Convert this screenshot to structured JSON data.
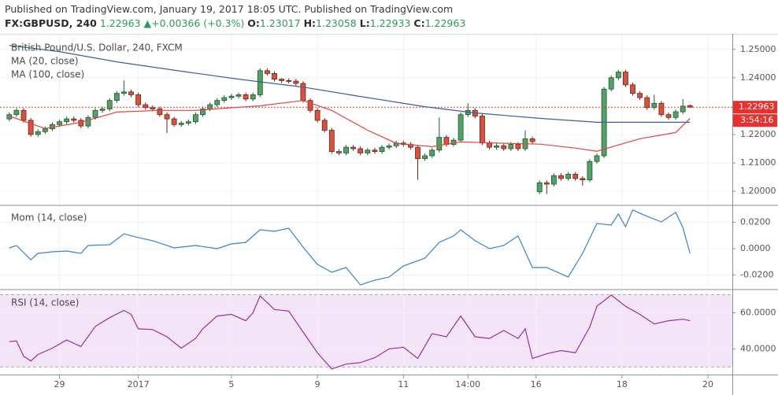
{
  "header": {
    "published": "Published on TradingView.com, January 19, 2017 18:05 UTC. Published on TradingView.com",
    "symbol": "FX:GBPUSD, 240",
    "change": "+0.00366 (+0.3%)",
    "ohlc_labels": [
      "O:",
      "H:",
      "L:",
      "C:"
    ]
  },
  "chart_data": [
    {
      "type": "candlestick",
      "title": "British Pound/U.S. Dollar, 240, FXCM",
      "open": [
        1.2255,
        1.227,
        1.2285,
        1.225,
        1.22,
        1.221,
        1.222,
        1.2235,
        1.2245,
        1.2255,
        1.225,
        1.223,
        1.226,
        1.2285,
        1.229,
        1.232,
        1.2345,
        1.235,
        1.234,
        1.2305,
        1.2295,
        1.229,
        1.227,
        1.2255,
        1.2235,
        1.224,
        1.2245,
        1.227,
        1.229,
        1.2305,
        1.232,
        1.233,
        1.2335,
        1.234,
        1.2325,
        1.234,
        1.2425,
        1.2415,
        1.2395,
        1.239,
        1.2388,
        1.238,
        1.232,
        1.2285,
        1.225,
        1.2215,
        1.214,
        1.2135,
        1.2155,
        1.215,
        1.2135,
        1.2145,
        1.214,
        1.2155,
        1.216,
        1.217,
        1.2165,
        1.2155,
        1.2115,
        1.2125,
        1.2145,
        1.219,
        1.2165,
        1.218,
        1.227,
        1.2285,
        1.2265,
        1.217,
        1.2155,
        1.216,
        1.215,
        1.2165,
        1.215,
        1.2185,
        1.1998,
        1.203,
        1.2025,
        1.2055,
        1.2045,
        1.206,
        1.2045,
        1.204,
        1.2105,
        1.2125,
        1.236,
        1.24,
        1.242,
        1.2375,
        1.2345,
        1.233,
        1.2295,
        1.231,
        1.227,
        1.226,
        1.228,
        1.23017
      ],
      "high": [
        1.2278,
        1.2293,
        1.2293,
        1.2258,
        1.2218,
        1.2228,
        1.2243,
        1.2253,
        1.2263,
        1.2263,
        1.2258,
        1.2268,
        1.2293,
        1.2298,
        1.2328,
        1.2353,
        1.239,
        1.2358,
        1.2348,
        1.2313,
        1.2303,
        1.2298,
        1.2278,
        1.2263,
        1.2248,
        1.2253,
        1.2278,
        1.2298,
        1.2313,
        1.2328,
        1.2338,
        1.2343,
        1.2348,
        1.2348,
        1.2348,
        1.2433,
        1.2433,
        1.2423,
        1.2398,
        1.2398,
        1.2396,
        1.2388,
        1.2328,
        1.2293,
        1.2258,
        1.2223,
        1.2148,
        1.2163,
        1.2163,
        1.2158,
        1.2153,
        1.2153,
        1.2163,
        1.2168,
        1.2178,
        1.2178,
        1.2173,
        1.2163,
        1.2133,
        1.2153,
        1.226,
        1.2198,
        1.2188,
        1.2278,
        1.231,
        1.2293,
        1.2273,
        1.2178,
        1.2168,
        1.2168,
        1.2173,
        1.2173,
        1.2215,
        1.2193,
        1.2038,
        1.2038,
        1.2063,
        1.2063,
        1.2068,
        1.2068,
        1.2053,
        1.2113,
        1.2133,
        1.2368,
        1.2408,
        1.2428,
        1.2428,
        1.2383,
        1.2353,
        1.2338,
        1.234,
        1.2318,
        1.2278,
        1.2288,
        1.2325,
        1.23058
      ],
      "low": [
        1.2247,
        1.2262,
        1.2242,
        1.2192,
        1.2192,
        1.2202,
        1.2212,
        1.2227,
        1.2237,
        1.2242,
        1.2222,
        1.2222,
        1.2252,
        1.2277,
        1.2282,
        1.2312,
        1.2337,
        1.2332,
        1.2297,
        1.2287,
        1.2282,
        1.2262,
        1.2205,
        1.2227,
        1.2227,
        1.2232,
        1.2237,
        1.2262,
        1.2282,
        1.2297,
        1.2312,
        1.2322,
        1.2327,
        1.2317,
        1.2317,
        1.2332,
        1.2407,
        1.2387,
        1.2382,
        1.238,
        1.2372,
        1.2312,
        1.2277,
        1.2242,
        1.2207,
        1.2132,
        1.2127,
        1.2127,
        1.2142,
        1.2127,
        1.2127,
        1.2132,
        1.2132,
        1.2147,
        1.2152,
        1.2157,
        1.2147,
        1.204,
        1.2107,
        1.2117,
        1.2137,
        1.2157,
        1.2157,
        1.2172,
        1.2262,
        1.2257,
        1.2162,
        1.2147,
        1.2147,
        1.2142,
        1.2142,
        1.2142,
        1.2142,
        1.2167,
        1.199,
        1.199,
        1.2017,
        1.2037,
        1.2037,
        1.2037,
        1.202,
        1.2032,
        1.2097,
        1.2117,
        1.2352,
        1.2392,
        1.2367,
        1.2337,
        1.2322,
        1.2287,
        1.2287,
        1.2262,
        1.2252,
        1.2252,
        1.2272,
        1.22933
      ],
      "close": [
        1.227,
        1.2285,
        1.225,
        1.22,
        1.221,
        1.222,
        1.2235,
        1.2245,
        1.2255,
        1.225,
        1.223,
        1.226,
        1.2285,
        1.229,
        1.232,
        1.2345,
        1.235,
        1.234,
        1.2305,
        1.2295,
        1.229,
        1.227,
        1.2255,
        1.2235,
        1.224,
        1.2245,
        1.227,
        1.229,
        1.2305,
        1.232,
        1.233,
        1.2335,
        1.234,
        1.2325,
        1.234,
        1.2425,
        1.2415,
        1.2395,
        1.239,
        1.2388,
        1.238,
        1.232,
        1.2285,
        1.225,
        1.2215,
        1.214,
        1.2135,
        1.2155,
        1.215,
        1.2135,
        1.2145,
        1.214,
        1.2155,
        1.216,
        1.217,
        1.2165,
        1.2155,
        1.2115,
        1.2125,
        1.2145,
        1.219,
        1.2165,
        1.218,
        1.227,
        1.2285,
        1.2265,
        1.217,
        1.2155,
        1.216,
        1.215,
        1.2165,
        1.215,
        1.2185,
        1.2175,
        1.203,
        1.2025,
        1.2055,
        1.2045,
        1.206,
        1.2045,
        1.204,
        1.2105,
        1.2125,
        1.236,
        1.24,
        1.242,
        1.2375,
        1.2345,
        1.233,
        1.2295,
        1.231,
        1.227,
        1.226,
        1.228,
        1.23,
        1.22963
      ],
      "up_color": "#53a167",
      "down_color": "#d4553f",
      "up_border": "#1f5530",
      "down_border": "#6e2015",
      "last_color": "#e8312c",
      "countdown": "3:54:16",
      "series": [
        {
          "name": "MA (20, close)",
          "color": "#e8423f",
          "x": [
            0,
            5,
            10,
            15,
            21,
            26,
            32,
            35,
            41,
            45,
            50,
            54,
            59,
            63,
            69,
            74,
            79,
            82,
            88,
            93,
            95
          ],
          "values": [
            1.2265,
            1.2221,
            1.2243,
            1.2279,
            1.2285,
            1.2285,
            1.2296,
            1.2301,
            1.232,
            1.2285,
            1.2215,
            1.2169,
            1.2157,
            1.2174,
            1.2169,
            1.2166,
            1.2152,
            1.2141,
            1.2185,
            1.2207,
            1.2257
          ]
        },
        {
          "name": "MA (100, close)",
          "color": "#3c5d9a",
          "x": [
            0,
            7,
            15,
            24,
            32,
            41,
            49,
            58,
            65,
            74,
            82,
            95
          ],
          "values": [
            1.2514,
            1.2492,
            1.2456,
            1.2423,
            1.2395,
            1.2367,
            1.2334,
            1.2298,
            1.2276,
            1.2257,
            1.2243,
            1.2243
          ]
        }
      ],
      "xlim": [
        -1.3,
        100.9
      ],
      "ylim": [
        1.1953,
        1.2552
      ],
      "yticks": [
        {
          "value": 1.25,
          "label": "1.25000"
        },
        {
          "value": 1.24,
          "label": "1.24000"
        },
        {
          "value": 1.22,
          "label": "1.22000"
        },
        {
          "value": 1.21,
          "label": "1.21000"
        },
        {
          "value": 1.2,
          "label": "1.20000"
        }
      ],
      "grid": true
    },
    {
      "type": "line",
      "series": [
        {
          "name": "Mom (14, close)",
          "color": "#3b82c4",
          "x": [
            0,
            1,
            3,
            4,
            6,
            8,
            10,
            11,
            14,
            16,
            18,
            20,
            23,
            26,
            29,
            31,
            33,
            35,
            37,
            39,
            41,
            43,
            45,
            47,
            49,
            51,
            53,
            55,
            58,
            60,
            62,
            63,
            65,
            67,
            69,
            71,
            73,
            75,
            78,
            80,
            82,
            84,
            85,
            86,
            87,
            89,
            91,
            93,
            94,
            95
          ],
          "values": [
            0.0006,
            0.0024,
            -0.0084,
            -0.0036,
            -0.0024,
            -0.0018,
            -0.0036,
            0.0024,
            0.003,
            0.0113,
            0.0084,
            0.006,
            0.0006,
            0.0024,
            0,
            0.0036,
            0.0048,
            0.0143,
            0.0131,
            0.0155,
            0.0012,
            -0.0119,
            -0.0179,
            -0.0143,
            -0.0275,
            -0.0239,
            -0.0215,
            -0.0131,
            -0.0072,
            0.0048,
            0.0096,
            0.0143,
            0.006,
            0,
            0.0024,
            0.0096,
            -0.0143,
            -0.0143,
            -0.0215,
            -0.0036,
            0.0191,
            0.0179,
            0.0263,
            0.0167,
            0.0293,
            0.0245,
            0.0203,
            0.0275,
            0.016,
            -0.0036
          ]
        }
      ],
      "xlim": [
        -1.3,
        100.9
      ],
      "ylim": [
        -0.0304,
        0.0322
      ],
      "yticks": [
        {
          "value": 0.02,
          "label": "0.0200"
        },
        {
          "value": 0,
          "label": "0.0000"
        },
        {
          "value": -0.02,
          "label": "-0.0200"
        }
      ],
      "grid": true
    },
    {
      "type": "line",
      "series": [
        {
          "name": "RSI (14, close)",
          "color": "#9b2f9c",
          "x": [
            0,
            1,
            2,
            3,
            4,
            6,
            8,
            10,
            12,
            14,
            16,
            17,
            18,
            20,
            22,
            24,
            26,
            27,
            29,
            31,
            33,
            34,
            35,
            37,
            39,
            41,
            43,
            45,
            47,
            49,
            51,
            53,
            55,
            57,
            59,
            61,
            63,
            65,
            67,
            69,
            71,
            72,
            73,
            75,
            77,
            79,
            81,
            82,
            84,
            86,
            88,
            90,
            92,
            94,
            95
          ],
          "values": [
            44.0,
            44.4,
            36.0,
            33.3,
            36.9,
            40.4,
            44.9,
            41.3,
            52.4,
            57.3,
            61.3,
            59.1,
            51.1,
            50.7,
            46.7,
            40.4,
            45.8,
            51.1,
            58.2,
            59.1,
            55.6,
            60.0,
            69.3,
            61.8,
            60.9,
            49.3,
            37.8,
            28.9,
            31.6,
            32.4,
            35.1,
            40.0,
            40.9,
            34.7,
            48.4,
            46.7,
            58.2,
            46.7,
            45.8,
            50.2,
            45.8,
            51.1,
            34.7,
            37.3,
            39.1,
            37.8,
            52.0,
            63.6,
            69.8,
            63.6,
            59.1,
            53.8,
            55.6,
            56.4,
            55.6
          ]
        }
      ],
      "band": [
        30,
        70
      ],
      "band_color": "#f4e4f8",
      "xlim": [
        -1.3,
        100.9
      ],
      "ylim": [
        25.8,
        72.4
      ],
      "yticks": [
        {
          "value": 60,
          "label": "60.0000"
        },
        {
          "value": 40,
          "label": "40.0000"
        }
      ],
      "xticks": [
        {
          "value": 7,
          "label": "29"
        },
        {
          "value": 18,
          "label": "2017"
        },
        {
          "value": 31,
          "label": "5"
        },
        {
          "value": 43,
          "label": "9"
        },
        {
          "value": 55,
          "label": "11"
        },
        {
          "value": 64,
          "label": "14:00"
        },
        {
          "value": 73.5,
          "label": "16"
        },
        {
          "value": 85.5,
          "label": "18"
        },
        {
          "value": 97.5,
          "label": "20"
        }
      ],
      "grid": true
    }
  ]
}
